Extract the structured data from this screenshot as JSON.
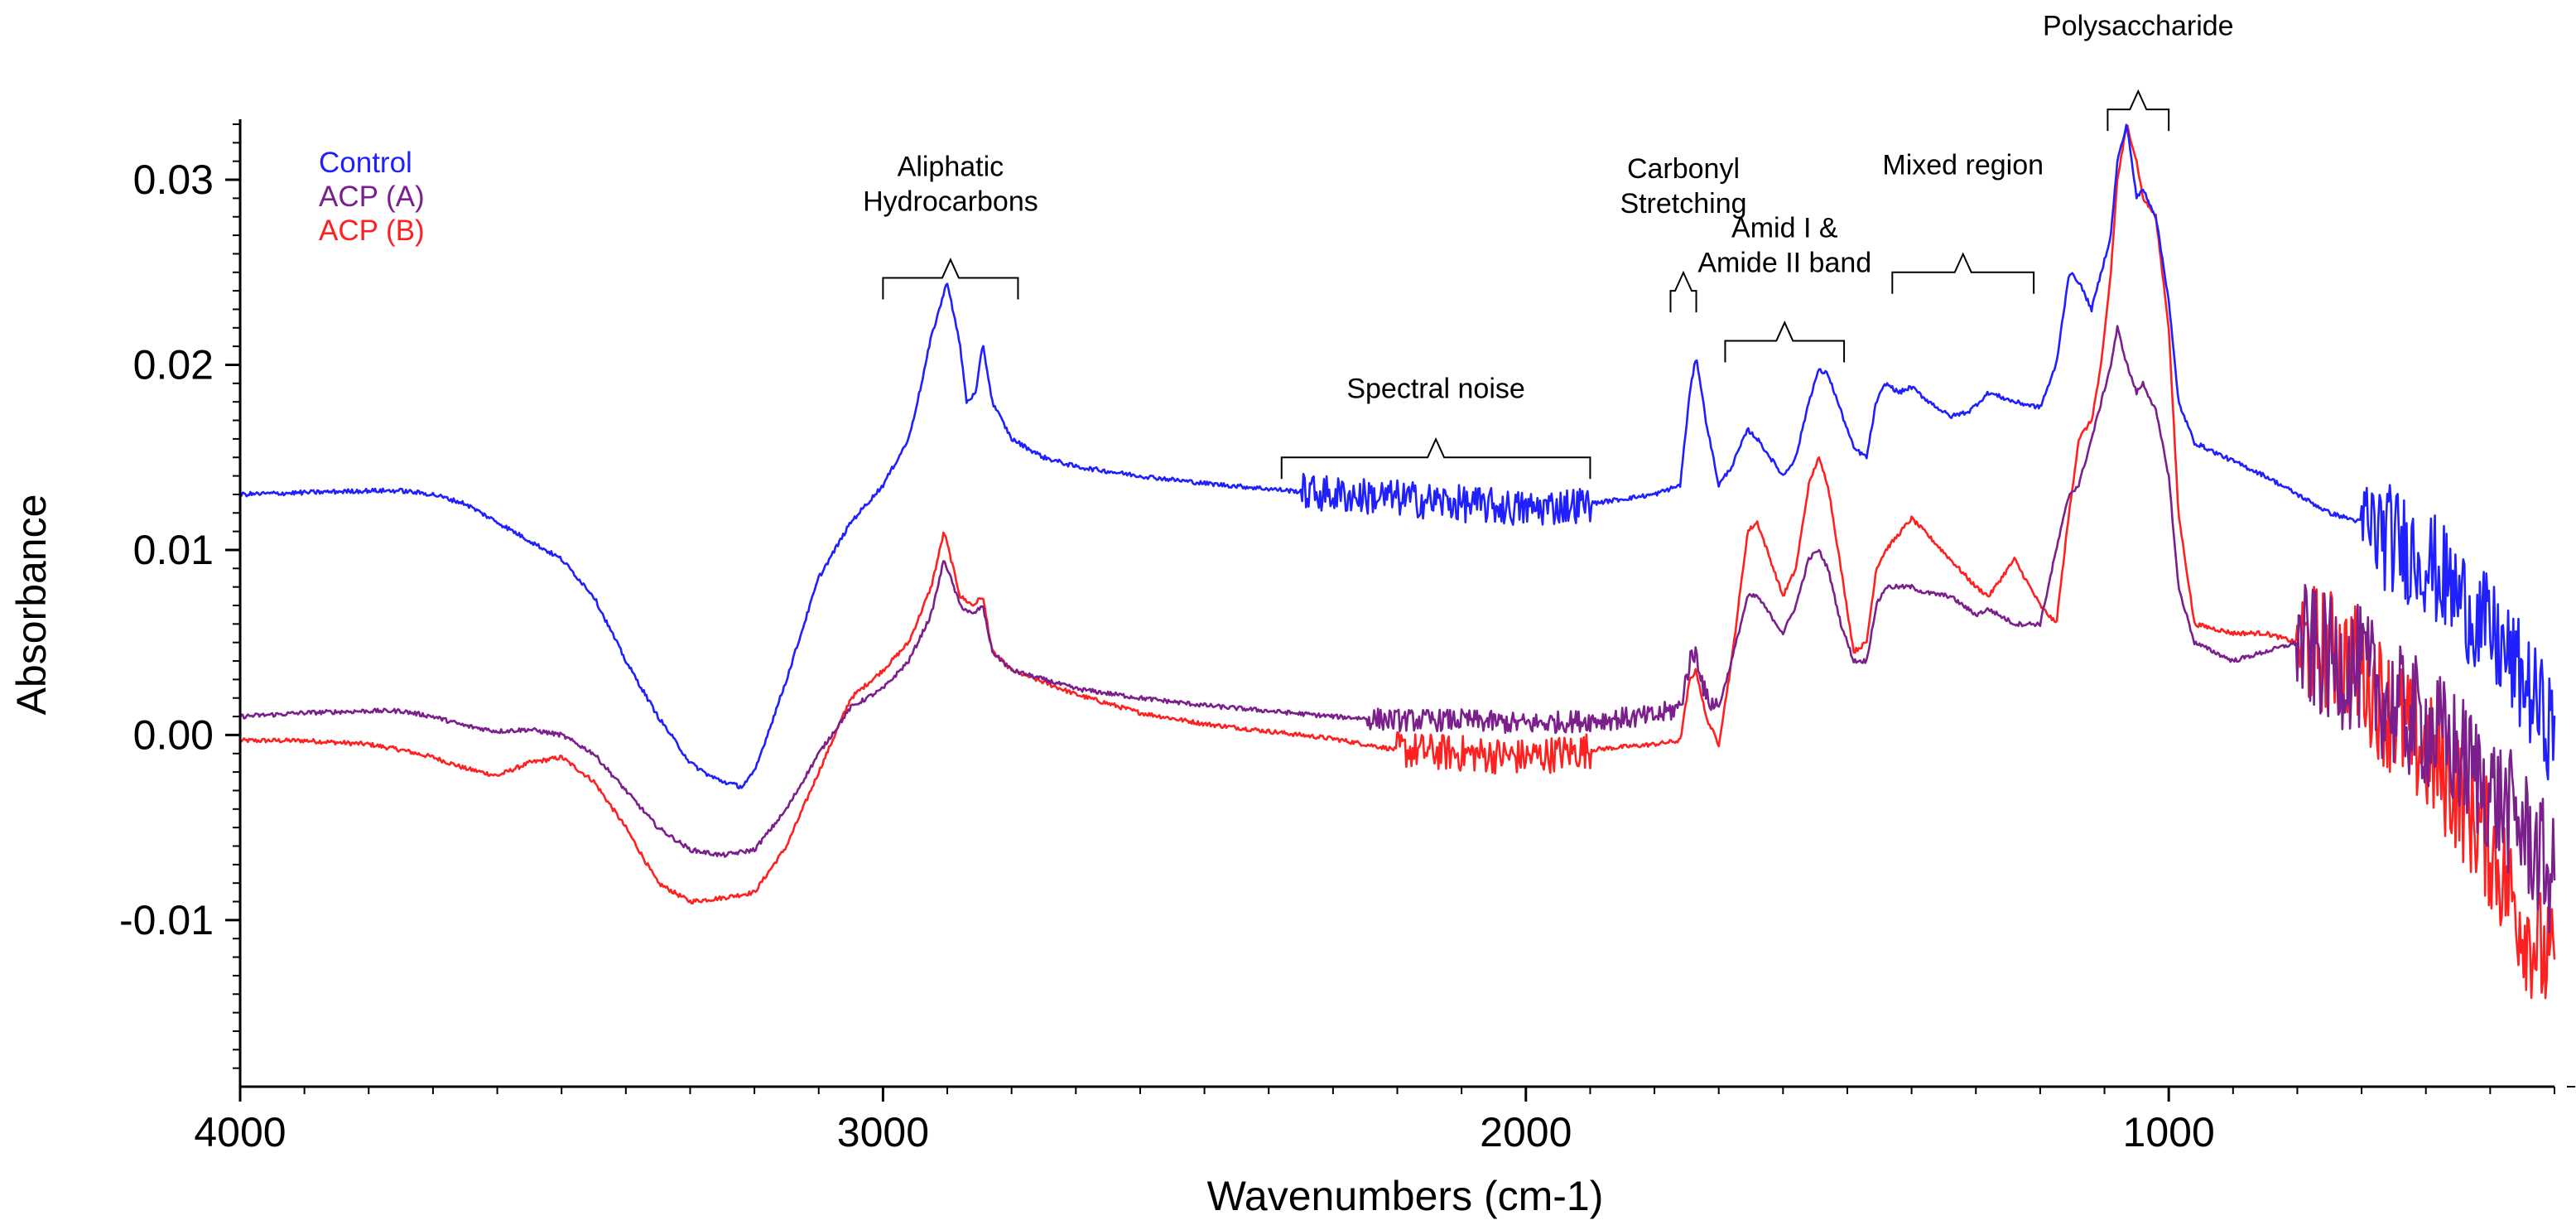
{
  "chart_data": {
    "type": "line",
    "title": "",
    "xlabel": "Wavenumbers (cm-1)",
    "ylabel": "Absorbance",
    "xlim": [
      4000,
      400
    ],
    "ylim": [
      -0.019,
      0.033
    ],
    "x_reversed": true,
    "grid": false,
    "legend_position": "top-left",
    "x_ticks": [
      {
        "value": 4000,
        "label": "4000"
      },
      {
        "value": 3000,
        "label": "3000"
      },
      {
        "value": 2000,
        "label": "2000"
      },
      {
        "value": 1000,
        "label": "1000"
      }
    ],
    "y_ticks": [
      {
        "value": 0.03,
        "label": "0.03"
      },
      {
        "value": 0.02,
        "label": "0.02"
      },
      {
        "value": 0.01,
        "label": "0.01"
      },
      {
        "value": 0.0,
        "label": "0.00"
      },
      {
        "value": -0.01,
        "label": "-0.01"
      }
    ],
    "series": [
      {
        "name": "Control",
        "color": "#1f1fff",
        "noise_ranges": [
          [
            2350,
            1900,
            0.001
          ],
          [
            700,
            400,
            0.003
          ]
        ],
        "x": [
          4000,
          3900,
          3800,
          3750,
          3700,
          3650,
          3600,
          3550,
          3500,
          3450,
          3400,
          3350,
          3300,
          3270,
          3250,
          3220,
          3200,
          3150,
          3100,
          3050,
          3000,
          2960,
          2940,
          2925,
          2900,
          2880,
          2870,
          2855,
          2845,
          2830,
          2800,
          2750,
          2700,
          2600,
          2500,
          2400,
          2300,
          2200,
          2100,
          2000,
          1900,
          1800,
          1760,
          1745,
          1735,
          1720,
          1700,
          1680,
          1655,
          1640,
          1600,
          1580,
          1560,
          1545,
          1530,
          1510,
          1490,
          1470,
          1455,
          1440,
          1420,
          1400,
          1380,
          1340,
          1310,
          1280,
          1240,
          1200,
          1175,
          1155,
          1140,
          1120,
          1105,
          1090,
          1080,
          1065,
          1050,
          1040,
          1020,
          1000,
          985,
          960,
          900,
          850,
          800,
          750,
          700,
          650,
          600,
          550,
          500,
          450,
          400
        ],
        "y": [
          0.013,
          0.0131,
          0.0132,
          0.0132,
          0.013,
          0.0125,
          0.0115,
          0.0105,
          0.0095,
          0.0075,
          0.004,
          0.001,
          -0.0015,
          -0.0022,
          -0.0025,
          -0.0028,
          -0.002,
          0.003,
          0.0085,
          0.0115,
          0.0135,
          0.016,
          0.019,
          0.0215,
          0.0245,
          0.021,
          0.018,
          0.0185,
          0.0212,
          0.018,
          0.016,
          0.015,
          0.0145,
          0.014,
          0.0136,
          0.0133,
          0.013,
          0.0128,
          0.0125,
          0.0122,
          0.0125,
          0.013,
          0.0135,
          0.0185,
          0.0205,
          0.017,
          0.0135,
          0.0145,
          0.0165,
          0.016,
          0.014,
          0.015,
          0.018,
          0.0197,
          0.0195,
          0.0175,
          0.0155,
          0.015,
          0.018,
          0.019,
          0.0185,
          0.0188,
          0.0182,
          0.0172,
          0.0175,
          0.0185,
          0.018,
          0.0177,
          0.02,
          0.025,
          0.0245,
          0.023,
          0.025,
          0.027,
          0.031,
          0.033,
          0.029,
          0.0295,
          0.028,
          0.0235,
          0.018,
          0.0158,
          0.0148,
          0.014,
          0.013,
          0.012,
          0.0115,
          0.0105,
          0.0095,
          0.0075,
          0.0055,
          0.003,
          0.0
        ]
      },
      {
        "name": "ACP (A)",
        "color": "#7b1f8c",
        "noise_ranges": [
          [
            2250,
            1700,
            0.0006
          ],
          [
            800,
            400,
            0.0035
          ]
        ],
        "x": [
          4000,
          3900,
          3800,
          3750,
          3700,
          3650,
          3600,
          3550,
          3500,
          3450,
          3400,
          3350,
          3300,
          3250,
          3200,
          3150,
          3100,
          3050,
          3000,
          2960,
          2925,
          2905,
          2880,
          2860,
          2845,
          2830,
          2800,
          2700,
          2600,
          2500,
          2400,
          2300,
          2200,
          2100,
          2000,
          1900,
          1800,
          1760,
          1745,
          1735,
          1720,
          1700,
          1680,
          1655,
          1640,
          1600,
          1580,
          1560,
          1545,
          1530,
          1510,
          1490,
          1470,
          1455,
          1440,
          1400,
          1380,
          1340,
          1300,
          1280,
          1240,
          1200,
          1175,
          1155,
          1140,
          1120,
          1105,
          1090,
          1080,
          1065,
          1050,
          1040,
          1020,
          1000,
          985,
          960,
          900,
          850,
          800,
          750,
          700,
          650,
          600,
          550,
          500,
          450,
          400
        ],
        "y": [
          0.001,
          0.0012,
          0.0013,
          0.0013,
          0.001,
          0.0005,
          0.0002,
          0.0003,
          0.0,
          -0.001,
          -0.003,
          -0.005,
          -0.0062,
          -0.0065,
          -0.0062,
          -0.004,
          -0.001,
          0.0015,
          0.0025,
          0.004,
          0.0065,
          0.0095,
          0.007,
          0.0065,
          0.007,
          0.0045,
          0.0035,
          0.0025,
          0.002,
          0.0016,
          0.0013,
          0.001,
          0.0008,
          0.0008,
          0.0006,
          0.0008,
          0.001,
          0.0015,
          0.004,
          0.0045,
          0.002,
          0.0015,
          0.004,
          0.0075,
          0.0075,
          0.0055,
          0.007,
          0.0095,
          0.01,
          0.009,
          0.006,
          0.004,
          0.004,
          0.007,
          0.008,
          0.008,
          0.0077,
          0.0075,
          0.0065,
          0.0068,
          0.006,
          0.006,
          0.01,
          0.013,
          0.0135,
          0.016,
          0.018,
          0.02,
          0.022,
          0.02,
          0.0185,
          0.019,
          0.0175,
          0.014,
          0.008,
          0.005,
          0.004,
          0.0045,
          0.005,
          0.004,
          0.0035,
          0.0015,
          0.0005,
          -0.001,
          -0.003,
          -0.005,
          -0.008
        ]
      },
      {
        "name": "ACP (B)",
        "color": "#ff2020",
        "noise_ranges": [
          [
            2200,
            1900,
            0.001
          ],
          [
            800,
            400,
            0.0035
          ]
        ],
        "x": [
          4000,
          3900,
          3800,
          3750,
          3700,
          3650,
          3600,
          3550,
          3500,
          3450,
          3400,
          3350,
          3300,
          3250,
          3200,
          3150,
          3100,
          3050,
          3000,
          2960,
          2925,
          2905,
          2880,
          2860,
          2845,
          2830,
          2800,
          2700,
          2600,
          2500,
          2400,
          2300,
          2200,
          2100,
          2000,
          1900,
          1800,
          1760,
          1745,
          1735,
          1720,
          1700,
          1680,
          1655,
          1640,
          1600,
          1580,
          1560,
          1545,
          1530,
          1510,
          1490,
          1470,
          1455,
          1440,
          1400,
          1380,
          1340,
          1300,
          1280,
          1240,
          1200,
          1175,
          1155,
          1140,
          1120,
          1105,
          1090,
          1080,
          1065,
          1050,
          1040,
          1020,
          1000,
          985,
          960,
          900,
          850,
          800,
          750,
          700,
          650,
          600,
          550,
          500,
          450,
          400
        ],
        "y": [
          -0.0003,
          -0.0003,
          -0.0005,
          -0.0008,
          -0.0012,
          -0.0018,
          -0.0022,
          -0.0015,
          -0.0012,
          -0.0025,
          -0.005,
          -0.008,
          -0.009,
          -0.0088,
          -0.0085,
          -0.006,
          -0.002,
          0.002,
          0.0035,
          0.005,
          0.008,
          0.011,
          0.0075,
          0.007,
          0.0075,
          0.0045,
          0.0035,
          0.0022,
          0.0012,
          0.0006,
          0.0002,
          -0.0002,
          -0.0008,
          -0.001,
          -0.0012,
          -0.0008,
          -0.0005,
          -0.0003,
          0.003,
          0.0035,
          0.001,
          -0.0005,
          0.004,
          0.011,
          0.0115,
          0.0075,
          0.009,
          0.0135,
          0.015,
          0.0135,
          0.009,
          0.0045,
          0.005,
          0.009,
          0.01,
          0.0117,
          0.011,
          0.0095,
          0.008,
          0.0075,
          0.0095,
          0.007,
          0.006,
          0.012,
          0.016,
          0.017,
          0.02,
          0.025,
          0.03,
          0.033,
          0.031,
          0.029,
          0.028,
          0.022,
          0.012,
          0.006,
          0.0055,
          0.0055,
          0.005,
          0.0045,
          0.0035,
          0.001,
          -0.001,
          -0.003,
          -0.006,
          -0.01,
          -0.013
        ]
      }
    ],
    "annotations": [
      {
        "lines": [
          "Aliphatic",
          "Hydrocarbons"
        ],
        "bracket_from": 3000,
        "bracket_to": 2790,
        "y_text": 0.0302,
        "y_bracket": 0.0247
      },
      {
        "lines": [
          "Spectral noise"
        ],
        "bracket_from": 2380,
        "bracket_to": 1900,
        "y_text": 0.0182,
        "y_bracket": 0.015
      },
      {
        "lines": [
          "Carbonyl",
          "Stretching"
        ],
        "bracket_from": 1775,
        "bracket_to": 1735,
        "y_text": 0.0301,
        "y_bracket": 0.024
      },
      {
        "lines": [
          "Amid I &",
          "Amide II band"
        ],
        "bracket_from": 1690,
        "bracket_to": 1505,
        "y_text": 0.0269,
        "y_bracket": 0.0213
      },
      {
        "lines": [
          "Mixed region"
        ],
        "bracket_from": 1430,
        "bracket_to": 1210,
        "y_text": 0.0303,
        "y_bracket": 0.025
      },
      {
        "lines": [
          "Polysaccharide"
        ],
        "bracket_from": 1095,
        "bracket_to": 1000,
        "y_text": 0.0378,
        "y_bracket": 0.0338
      }
    ]
  }
}
